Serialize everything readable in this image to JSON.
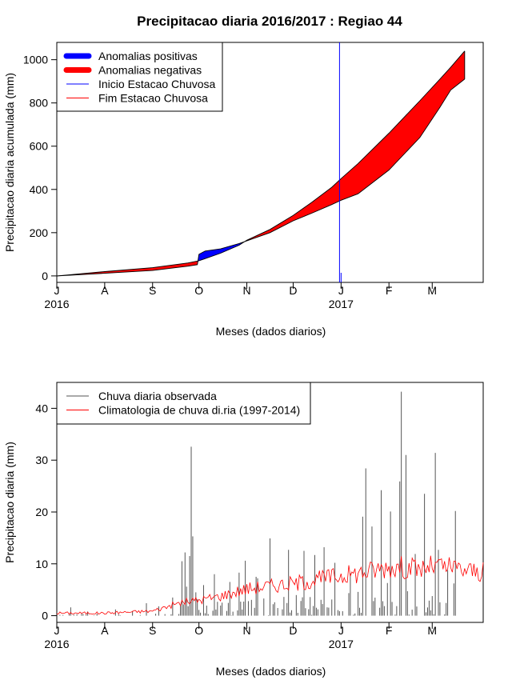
{
  "title": "Precipitacao diaria 2016/2017 : Regiao 44",
  "colors": {
    "positive": "#0000ff",
    "negative": "#ff0000",
    "observed": "#555555",
    "climatology": "#ff0000",
    "inicio": "#0000ff",
    "fim": "#ff0000"
  },
  "chart_data": [
    {
      "type": "area",
      "ylabel": "Precipitacao diaria acumulada (mm)",
      "xlabel": "Meses (dados diarios)",
      "xlim": [
        0,
        276
      ],
      "ylim": [
        -30,
        1080
      ],
      "x_ticks": [
        {
          "label": "J",
          "day": 0
        },
        {
          "label": "A",
          "day": 31
        },
        {
          "label": "S",
          "day": 62
        },
        {
          "label": "O",
          "day": 92
        },
        {
          "label": "N",
          "day": 123
        },
        {
          "label": "D",
          "day": 153
        },
        {
          "label": "J",
          "day": 184
        },
        {
          "label": "F",
          "day": 215
        },
        {
          "label": "M",
          "day": 243
        }
      ],
      "year_labels": [
        {
          "label": "2016",
          "day": 0
        },
        {
          "label": "2017",
          "day": 184
        }
      ],
      "y_ticks": [
        0,
        200,
        400,
        600,
        800,
        1000
      ],
      "inicio_day": 183,
      "inicio_day_short": 184,
      "observed_cumulative": {
        "days": [
          0,
          31,
          62,
          85,
          91,
          92,
          96,
          106,
          118,
          123,
          138,
          153,
          165,
          178,
          184,
          195,
          215,
          235,
          248,
          255,
          264
        ],
        "values": [
          0,
          12,
          25,
          45,
          52,
          100,
          115,
          125,
          150,
          162,
          200,
          255,
          290,
          330,
          350,
          380,
          490,
          640,
          780,
          860,
          910
        ]
      },
      "climatology_cumulative": {
        "days": [
          0,
          31,
          62,
          85,
          92,
          106,
          118,
          123,
          138,
          153,
          165,
          178,
          184,
          195,
          215,
          235,
          248,
          255,
          264
        ],
        "values": [
          0,
          20,
          38,
          60,
          70,
          105,
          142,
          165,
          215,
          280,
          340,
          410,
          450,
          520,
          660,
          810,
          910,
          965,
          1040
        ]
      },
      "legend": [
        {
          "label": "Anomalias positivas",
          "kind": "thick",
          "color": "#0000ff"
        },
        {
          "label": "Anomalias negativas",
          "kind": "thick",
          "color": "#ff0000"
        },
        {
          "label": "Inicio Estacao Chuvosa",
          "kind": "thin",
          "color": "#0000ff"
        },
        {
          "label": "Fim Estacao Chuvosa",
          "kind": "thin",
          "color": "#ff0000"
        }
      ]
    },
    {
      "type": "bar",
      "ylabel": "Precipitacao diaria (mm)",
      "xlabel": "Meses (dados diarios)",
      "xlim": [
        0,
        276
      ],
      "ylim": [
        -1.3,
        45
      ],
      "x_ticks": [
        {
          "label": "J",
          "day": 0
        },
        {
          "label": "A",
          "day": 31
        },
        {
          "label": "S",
          "day": 62
        },
        {
          "label": "O",
          "day": 92
        },
        {
          "label": "N",
          "day": 123
        },
        {
          "label": "D",
          "day": 153
        },
        {
          "label": "J",
          "day": 184
        },
        {
          "label": "F",
          "day": 215
        },
        {
          "label": "M",
          "day": 243
        }
      ],
      "year_labels": [
        {
          "label": "2016",
          "day": 0
        },
        {
          "label": "2017",
          "day": 184
        }
      ],
      "y_ticks": [
        0,
        10,
        20,
        30,
        40
      ],
      "observed_days": [
        9,
        20,
        38,
        49,
        58,
        66,
        75,
        81,
        83,
        84,
        86,
        87,
        88,
        90,
        91,
        95,
        102,
        112,
        118,
        122,
        129,
        130,
        138,
        150,
        160,
        167,
        173,
        180,
        190,
        198,
        200,
        204,
        210,
        214,
        216,
        222,
        223,
        226,
        232,
        238,
        245,
        247,
        253,
        258
      ],
      "observed_values": [
        1.6,
        0.8,
        1.2,
        0.9,
        2.4,
        1.8,
        3.5,
        10.5,
        12.2,
        5.6,
        11.5,
        32.6,
        15.3,
        4.5,
        3.2,
        5.9,
        8.0,
        6.5,
        8.3,
        10.6,
        7.5,
        7.2,
        14.9,
        12.7,
        12.5,
        11.7,
        13.2,
        10.2,
        8.2,
        19.1,
        28.4,
        17.2,
        24.2,
        6.3,
        20.1,
        25.9,
        43.2,
        31.0,
        11.9,
        23.5,
        31.4,
        12.7,
        8.8,
        20.2
      ],
      "observed_noise_amplitude": 2.2,
      "observed_noise_start_day": 80,
      "observed_noise_end_day": 260,
      "climatology": {
        "days": [
          0,
          31,
          62,
          80,
          92,
          106,
          123,
          138,
          153,
          165,
          178,
          184,
          195,
          205,
          215,
          225,
          235,
          243,
          250,
          260,
          270,
          276
        ],
        "values": [
          0.5,
          0.5,
          0.9,
          2.5,
          3.0,
          3.8,
          5.2,
          5.8,
          6.2,
          6.8,
          7.5,
          7.8,
          8.2,
          8.8,
          9.5,
          9.3,
          9.0,
          9.5,
          9.4,
          9.0,
          8.6,
          8.3
        ]
      },
      "legend": [
        {
          "label": "Chuva diaria observada",
          "kind": "thin",
          "color": "#555555"
        },
        {
          "label": "Climatologia de chuva di.ria (1997-2014)",
          "kind": "thin",
          "color": "#ff0000"
        }
      ]
    }
  ]
}
